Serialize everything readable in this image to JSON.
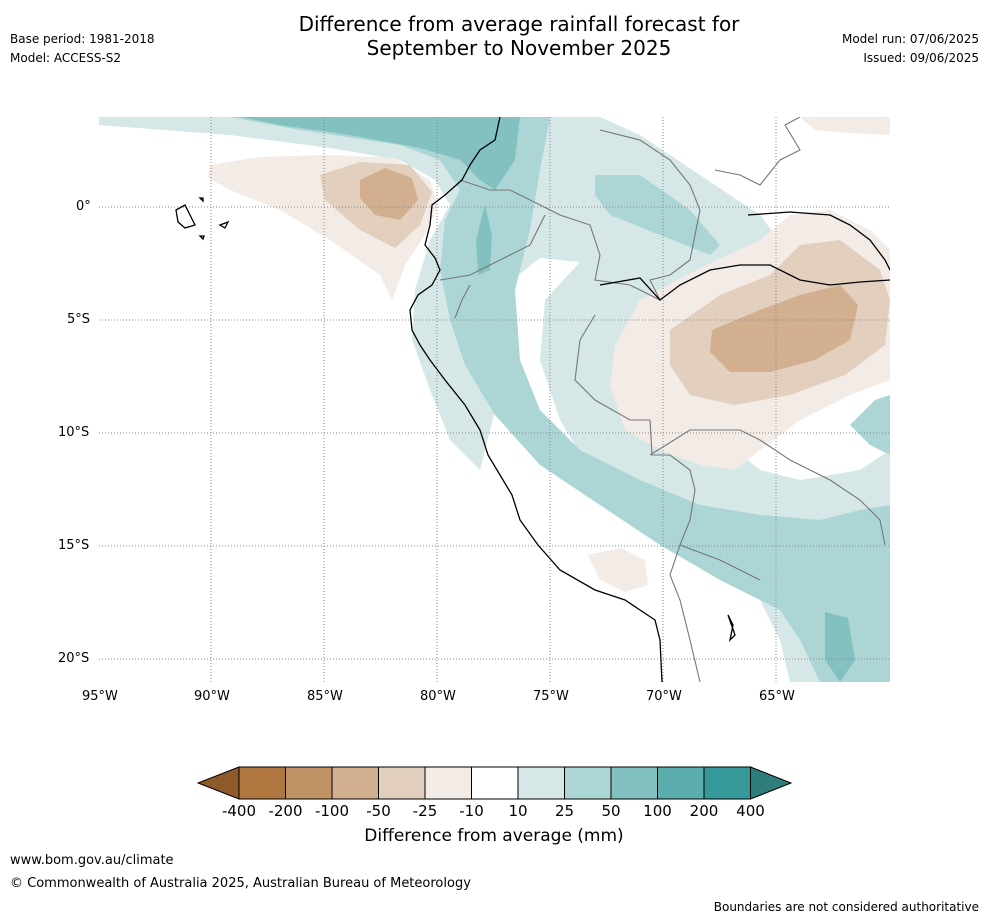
{
  "title_line1": "Difference from average rainfall forecast for",
  "title_line2": "September to November 2025",
  "base_period": "Base period: 1981-2018",
  "model": "Model: ACCESS-S2",
  "model_run": "Model run: 07/06/2025",
  "issued": "Issued: 09/06/2025",
  "lat_labels": [
    "0°",
    "5°S",
    "10°S",
    "15°S",
    "20°S"
  ],
  "lon_labels": [
    "95°W",
    "90°W",
    "85°W",
    "80°W",
    "75°W",
    "70°W",
    "65°W"
  ],
  "legend": {
    "title": "Difference from average (mm)",
    "tick_labels": [
      "-400",
      "-200",
      "-100",
      "-50",
      "-25",
      "-10",
      "10",
      "25",
      "50",
      "100",
      "200",
      "400"
    ],
    "colors": [
      "#8c5a2b",
      "#b07840",
      "#c09366",
      "#d2b08f",
      "#e2cfbd",
      "#f2ebe6",
      "#ffffff",
      "#d5e8e7",
      "#acd6d5",
      "#83c1c1",
      "#5cadad",
      "#35999a",
      "#2e7e7e"
    ]
  },
  "footer_url": "www.bom.gov.au/climate",
  "footer_copyright": "© Commonwealth of Australia 2025, Australian Bureau of Meteorology",
  "footer_disclaimer": "Boundaries are not considered authoritative"
}
